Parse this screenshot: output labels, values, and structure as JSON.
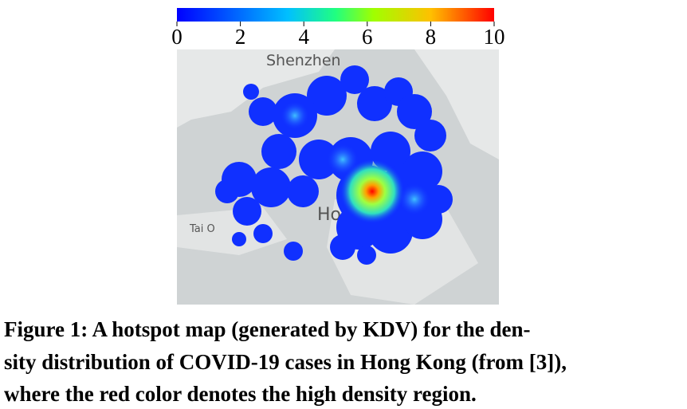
{
  "colorbar": {
    "lim": [
      0,
      10
    ],
    "ticks": [
      0,
      2,
      4,
      6,
      8,
      10
    ]
  },
  "map": {
    "labels": [
      "Shenzhen",
      "Tai O",
      "Hong Kong"
    ]
  },
  "caption": {
    "lines": [
      "Figure 1: A hotspot map (generated by KDV) for the den-",
      "sity distribution of COVID-19 cases in Hong Kong (from [3]),",
      "where the red color denotes the high density region."
    ]
  }
}
